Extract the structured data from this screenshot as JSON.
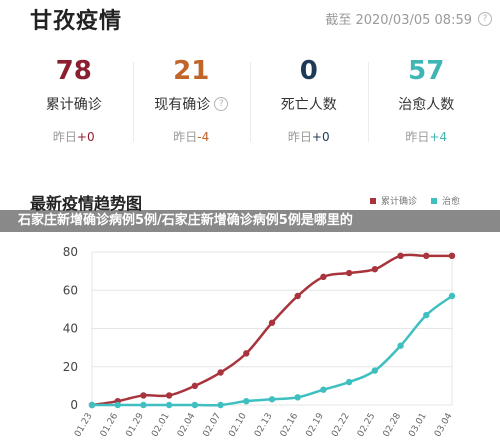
{
  "header": {
    "title": "甘孜疫情",
    "updated": "截至 2020/03/05 08:59"
  },
  "stats": [
    {
      "value": "78",
      "label": "累计确诊",
      "delta_prefix": "昨日",
      "delta": "+0",
      "color": "#8b1f2f",
      "delta_color": "#8b1f2f",
      "has_help": false
    },
    {
      "value": "21",
      "label": "现有确诊",
      "delta_prefix": "昨日",
      "delta": "-4",
      "color": "#c0662b",
      "delta_color": "#c0662b",
      "has_help": true
    },
    {
      "value": "0",
      "label": "死亡人数",
      "delta_prefix": "昨日",
      "delta": "+0",
      "color": "#1f3a57",
      "delta_color": "#1f3a57",
      "has_help": false
    },
    {
      "value": "57",
      "label": "治愈人数",
      "delta_prefix": "昨日",
      "delta": "+4",
      "color": "#3fb6b6",
      "delta_color": "#3fb6b6",
      "has_help": false
    }
  ],
  "overlay_text": "石家庄新增确诊病例5例/石家庄新增确诊病例5例是哪里的",
  "chart_section_title": "最新疫情趋势图",
  "legend": [
    {
      "label": "累计确诊",
      "color": "#a8343d"
    },
    {
      "label": "治愈",
      "color": "#3fbfbf"
    }
  ],
  "chart_data": {
    "type": "line",
    "x": [
      "01.23",
      "01.26",
      "01.29",
      "02.01",
      "02.04",
      "02.07",
      "02.10",
      "02.13",
      "02.16",
      "02.19",
      "02.22",
      "02.25",
      "02.28",
      "03.01",
      "03.04"
    ],
    "y_ticks": [
      0,
      20,
      40,
      60,
      80
    ],
    "ylim": [
      0,
      80
    ],
    "series": [
      {
        "name": "累计确诊",
        "color": "#a8343d",
        "values": [
          0,
          2,
          5,
          5,
          10,
          17,
          27,
          43,
          57,
          67,
          69,
          71,
          78,
          78,
          78
        ]
      },
      {
        "name": "治愈",
        "color": "#3fbfbf",
        "values": [
          0,
          0,
          0,
          0,
          0,
          0,
          2,
          3,
          4,
          8,
          12,
          18,
          31,
          47,
          57
        ]
      }
    ]
  }
}
